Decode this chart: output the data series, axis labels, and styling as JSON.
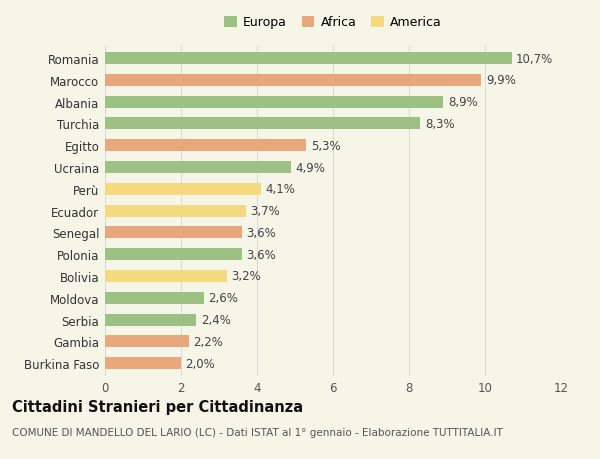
{
  "categories": [
    "Burkina Faso",
    "Gambia",
    "Serbia",
    "Moldova",
    "Bolivia",
    "Polonia",
    "Senegal",
    "Ecuador",
    "Perù",
    "Ucraina",
    "Egitto",
    "Turchia",
    "Albania",
    "Marocco",
    "Romania"
  ],
  "values": [
    2.0,
    2.2,
    2.4,
    2.6,
    3.2,
    3.6,
    3.6,
    3.7,
    4.1,
    4.9,
    5.3,
    8.3,
    8.9,
    9.9,
    10.7
  ],
  "continents": [
    "Africa",
    "Africa",
    "Europa",
    "Europa",
    "America",
    "Europa",
    "Africa",
    "America",
    "America",
    "Europa",
    "Africa",
    "Europa",
    "Europa",
    "Africa",
    "Europa"
  ],
  "labels": [
    "2,0%",
    "2,2%",
    "2,4%",
    "2,6%",
    "3,2%",
    "3,6%",
    "3,6%",
    "3,7%",
    "4,1%",
    "4,9%",
    "5,3%",
    "8,3%",
    "8,9%",
    "9,9%",
    "10,7%"
  ],
  "colors": {
    "Europa": "#9dc183",
    "Africa": "#e8a87c",
    "America": "#f5d97e"
  },
  "background_color": "#f5f5e8",
  "plot_bg_color": "#f5f5e8",
  "grid_color": "#d8d8d8",
  "title": "Cittadini Stranieri per Cittadinanza",
  "subtitle": "COMUNE DI MANDELLO DEL LARIO (LC) - Dati ISTAT al 1° gennaio - Elaborazione TUTTITALIA.IT",
  "xlim": [
    0,
    12
  ],
  "xticks": [
    0,
    2,
    4,
    6,
    8,
    10,
    12
  ],
  "bar_height": 0.55,
  "label_fontsize": 8.5,
  "tick_fontsize": 8.5,
  "ylabel_fontsize": 8.5,
  "title_fontsize": 10.5,
  "subtitle_fontsize": 7.5
}
